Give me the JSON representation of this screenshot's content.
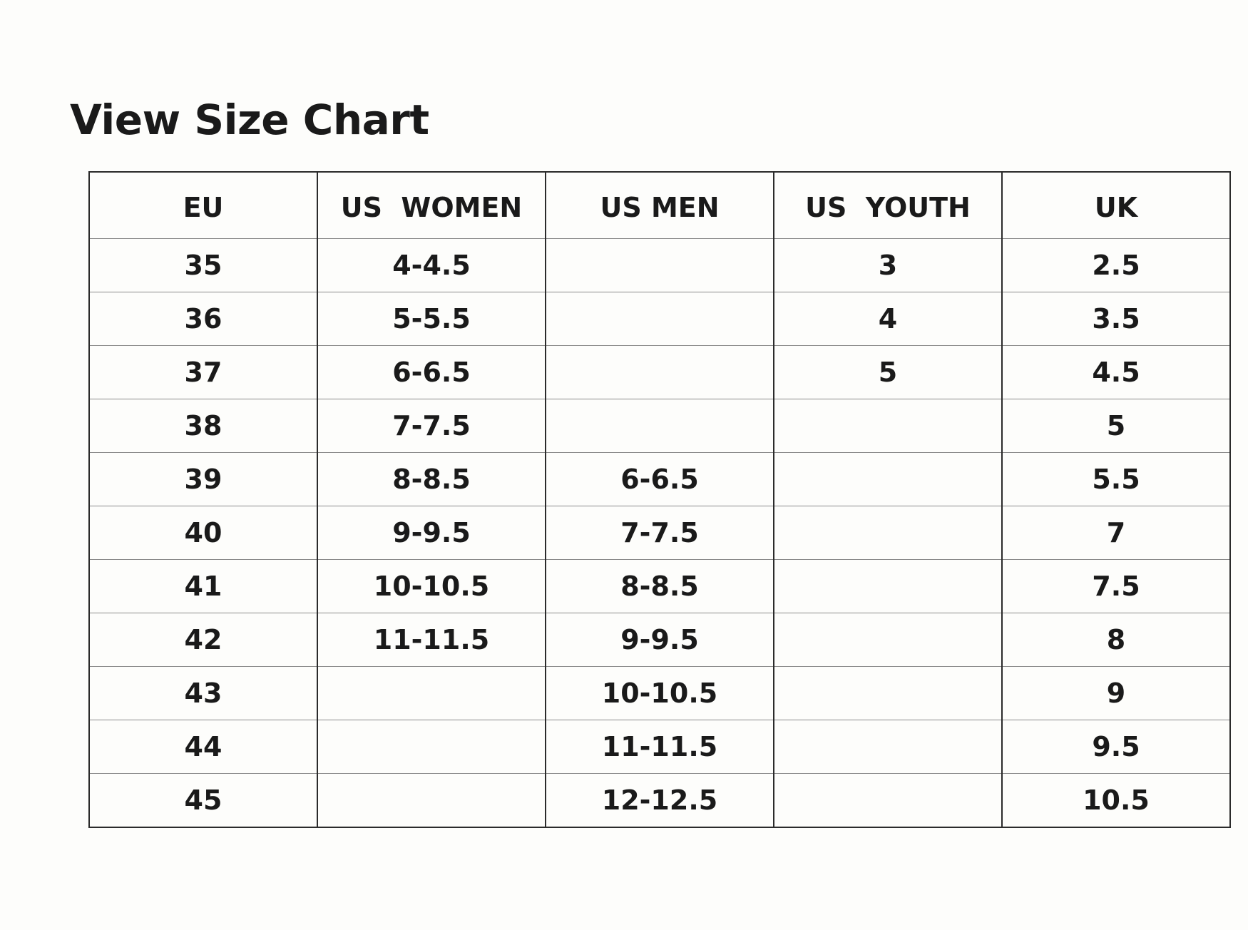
{
  "title": "View Size Chart",
  "table": {
    "headers": [
      "EU",
      "US  WOMEN",
      "US MEN",
      "US  YOUTH",
      "UK"
    ],
    "rows": [
      [
        "35",
        "4-4.5",
        "",
        "3",
        "2.5"
      ],
      [
        "36",
        "5-5.5",
        "",
        "4",
        "3.5"
      ],
      [
        "37",
        "6-6.5",
        "",
        "5",
        "4.5"
      ],
      [
        "38",
        "7-7.5",
        "",
        "",
        "5"
      ],
      [
        "39",
        "8-8.5",
        "6-6.5",
        "",
        "5.5"
      ],
      [
        "40",
        "9-9.5",
        "7-7.5",
        "",
        "7"
      ],
      [
        "41",
        "10-10.5",
        "8-8.5",
        "",
        "7.5"
      ],
      [
        "42",
        "11-11.5",
        "9-9.5",
        "",
        "8"
      ],
      [
        "43",
        "",
        "10-10.5",
        "",
        "9"
      ],
      [
        "44",
        "",
        "11-11.5",
        "",
        "9.5"
      ],
      [
        "45",
        "",
        "12-12.5",
        "",
        "10.5"
      ]
    ]
  }
}
